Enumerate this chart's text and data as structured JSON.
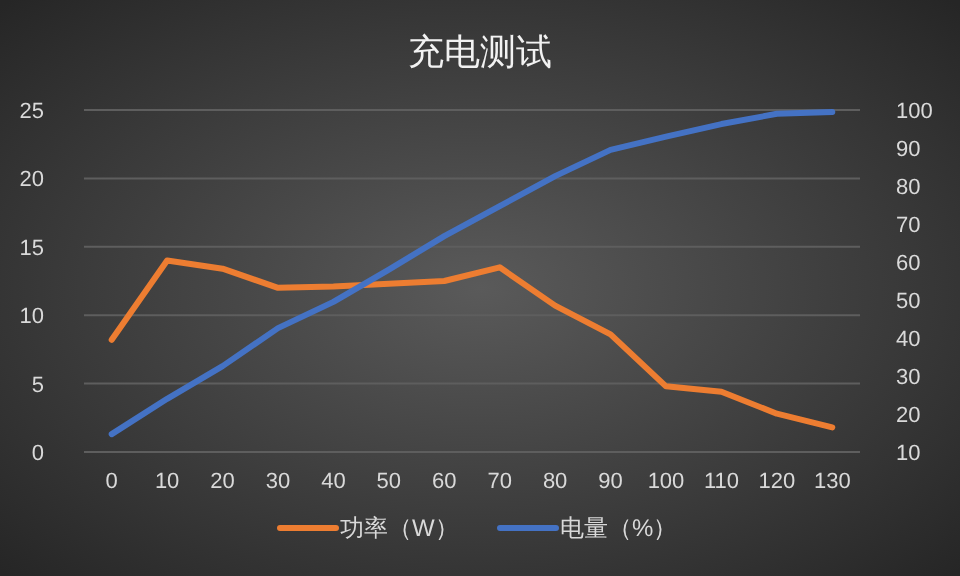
{
  "chart_data": {
    "type": "line",
    "title": "充电测试",
    "categories": [
      "0",
      "10",
      "20",
      "30",
      "40",
      "50",
      "60",
      "70",
      "80",
      "90",
      "100",
      "110",
      "120",
      "130"
    ],
    "ylim": [
      0,
      25
    ],
    "yticks": [
      0,
      5,
      10,
      15,
      20,
      25
    ],
    "y2lim": [
      10,
      100
    ],
    "y2ticks": [
      10,
      20,
      30,
      40,
      50,
      60,
      70,
      80,
      90,
      100
    ],
    "grid": "y",
    "legend": "bottom",
    "marker": "none",
    "line_style": "solid",
    "series": [
      {
        "name": "功率（W）",
        "color": "#ed7d31",
        "values": [
          8.2,
          14,
          13.4,
          12,
          12.1,
          12.3,
          12.5,
          13.5,
          10.7,
          8.6,
          4.8,
          4.4,
          2.8,
          1.8
        ]
      },
      {
        "name": "电量（%）",
        "color": "#4472c4",
        "axis": "y2",
        "values": [
          14.7,
          24,
          32.6,
          42.6,
          49.5,
          58,
          66.8,
          74.7,
          82.6,
          89.5,
          93,
          96.3,
          99,
          99.5
        ]
      }
    ]
  }
}
